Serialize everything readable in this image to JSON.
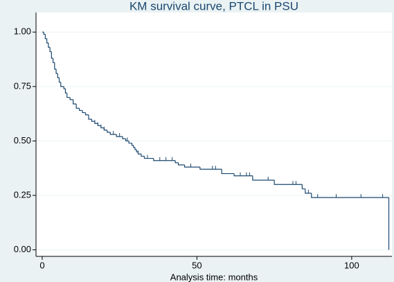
{
  "chart_data": {
    "type": "km",
    "title": "KM survival curve, PTCL in PSU",
    "x_label": "Analysis time: months",
    "color": "#1a476f",
    "grid": true,
    "xlim": [
      -2,
      113
    ],
    "ylim": [
      -0.03,
      1.09
    ],
    "xticks": [
      0,
      50,
      100
    ],
    "yticks": [
      {
        "value": 0,
        "label": "0.00"
      },
      {
        "value": 0.25,
        "label": "0.25"
      },
      {
        "value": 0.5,
        "label": "0.50"
      },
      {
        "value": 0.75,
        "label": "0.75"
      },
      {
        "value": 1,
        "label": "1.00"
      }
    ],
    "series": [
      {
        "x": [
          0,
          0.5,
          1,
          1.5,
          2,
          2.5,
          3,
          3.5,
          4,
          4.5,
          5,
          5.5,
          6,
          7,
          7.5,
          8,
          9,
          10,
          11,
          12,
          13,
          14,
          15,
          16,
          17,
          18,
          19,
          20,
          21,
          22,
          24,
          26,
          27,
          28,
          29,
          29.5,
          30,
          30.5,
          31,
          32,
          33,
          36,
          43,
          44,
          46,
          51,
          58,
          62,
          68,
          75,
          84,
          85,
          87,
          112
        ],
        "values": [
          1,
          0.99,
          0.97,
          0.95,
          0.93,
          0.91,
          0.88,
          0.86,
          0.83,
          0.81,
          0.79,
          0.77,
          0.75,
          0.74,
          0.72,
          0.7,
          0.69,
          0.67,
          0.65,
          0.64,
          0.63,
          0.62,
          0.6,
          0.59,
          0.58,
          0.57,
          0.56,
          0.55,
          0.54,
          0.53,
          0.52,
          0.51,
          0.5,
          0.49,
          0.48,
          0.47,
          0.46,
          0.45,
          0.44,
          0.43,
          0.42,
          0.41,
          0.4,
          0.39,
          0.38,
          0.37,
          0.35,
          0.34,
          0.32,
          0.3,
          0.28,
          0.26,
          0.24,
          0
        ]
      }
    ],
    "censored": {
      "x": [
        7.5,
        17,
        18,
        19,
        20,
        23,
        25,
        27.5,
        31,
        34,
        38,
        40,
        42,
        48,
        55,
        56,
        64,
        66,
        67,
        73,
        81,
        82,
        86,
        89,
        95,
        103,
        110
      ],
      "values": [
        0.72,
        0.58,
        0.57,
        0.56,
        0.55,
        0.53,
        0.52,
        0.5,
        0.44,
        0.42,
        0.41,
        0.41,
        0.41,
        0.38,
        0.37,
        0.37,
        0.34,
        0.34,
        0.34,
        0.32,
        0.3,
        0.3,
        0.26,
        0.24,
        0.24,
        0.24,
        0.24
      ]
    }
  }
}
